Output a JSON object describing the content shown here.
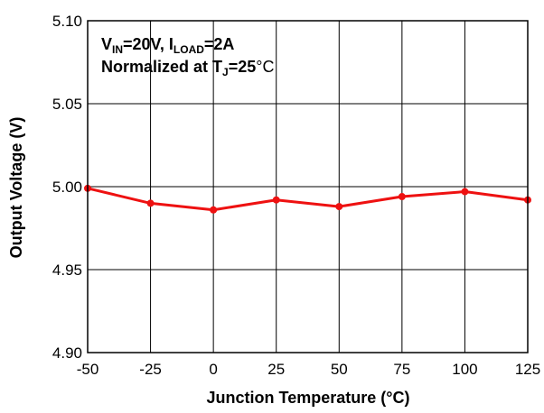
{
  "chart_data": {
    "type": "line",
    "x": [
      -50,
      -25,
      0,
      25,
      50,
      75,
      100,
      125
    ],
    "series": [
      {
        "values": [
          4.999,
          4.99,
          4.986,
          4.992,
          4.988,
          4.994,
          4.997,
          4.992
        ],
        "color": "#ee1111"
      }
    ],
    "xlabel": "Junction Temperature (°C)",
    "ylabel": "Output Voltage (V)",
    "xlim": [
      -50,
      125
    ],
    "ylim": [
      4.9,
      5.1
    ],
    "x_ticks": [
      -50,
      -25,
      0,
      25,
      50,
      75,
      100,
      125
    ],
    "x_tick_labels": [
      "-50",
      "-25",
      "0",
      "25",
      "50",
      "75",
      "100",
      "125"
    ],
    "y_ticks": [
      4.9,
      4.95,
      5.0,
      5.05,
      5.1
    ],
    "y_tick_labels": [
      "4.90",
      "4.95",
      "5.00",
      "5.05",
      "5.10"
    ],
    "grid": true,
    "annotation": {
      "line1": {
        "v": "V",
        "v_sub": "IN",
        "eq1": "=20V, I",
        "i_sub": "LOAD",
        "eq2": "=2A"
      },
      "line2": {
        "prefix": "Normalized at T",
        "t_sub": "J",
        "mid": "=25",
        "unit": "°C"
      }
    }
  }
}
